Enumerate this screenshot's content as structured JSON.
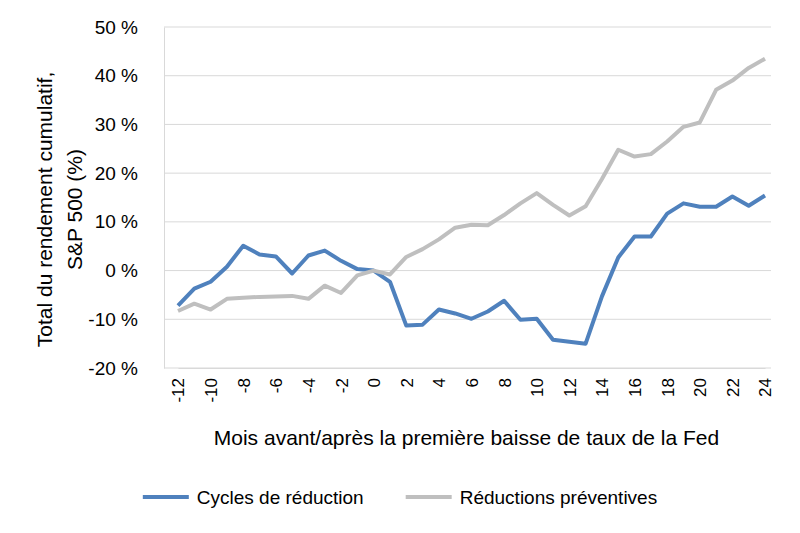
{
  "chart_data": {
    "type": "line",
    "x_label": "Mois avant/après la première baisse de taux de la Fed",
    "y_label": [
      "Total du rendement cumulatif,",
      "S&P 500 (%)"
    ],
    "x": [
      -12,
      -11,
      -10,
      -9,
      -8,
      -7,
      -6,
      -5,
      -4,
      -3,
      -2,
      -1,
      0,
      1,
      2,
      3,
      4,
      5,
      6,
      7,
      8,
      9,
      10,
      11,
      12,
      13,
      14,
      15,
      16,
      17,
      18,
      19,
      20,
      21,
      22,
      23,
      24
    ],
    "series": [
      {
        "name": "Cycles de réduction",
        "color": "#4f81bd",
        "values": [
          -7.2,
          -3.7,
          -2.3,
          0.8,
          5.1,
          3.3,
          2.9,
          -0.6,
          3.1,
          4.1,
          2.0,
          0.3,
          0,
          -2.3,
          -11.3,
          -11.1,
          -8.0,
          -8.8,
          -9.9,
          -8.4,
          -6.2,
          -10.1,
          -9.9,
          -14.2,
          -14.6,
          -15.0,
          -5.3,
          2.7,
          7.0,
          7.0,
          11.7,
          13.8,
          13.1,
          13.1,
          15.2,
          13.3,
          15.4
        ]
      },
      {
        "name": "Réductions préventives",
        "color": "#bfbfbf",
        "values": [
          -8.3,
          -6.8,
          -8.0,
          -5.8,
          -5.6,
          -5.4,
          -5.3,
          -5.2,
          -5.8,
          -3.1,
          -4.6,
          -1.0,
          0,
          -0.8,
          2.8,
          4.4,
          6.4,
          8.8,
          9.4,
          9.3,
          11.4,
          13.8,
          15.9,
          13.5,
          11.3,
          13.2,
          18.8,
          24.8,
          23.4,
          23.9,
          26.5,
          29.5,
          30.4,
          37.1,
          39.0,
          41.6,
          43.5
        ]
      }
    ],
    "xlim": [
      -12,
      24
    ],
    "xticks": [
      -12,
      -10,
      -8,
      -6,
      -4,
      -2,
      0,
      2,
      4,
      6,
      8,
      10,
      12,
      14,
      16,
      18,
      20,
      22,
      24
    ],
    "ylim": [
      -20,
      50
    ],
    "yticks": [
      {
        "value": -20,
        "label": "-20 %"
      },
      {
        "value": -10,
        "label": "-10 %"
      },
      {
        "value": 0,
        "label": "0 %"
      },
      {
        "value": 10,
        "label": "10 %"
      },
      {
        "value": 20,
        "label": "20 %"
      },
      {
        "value": 30,
        "label": "30 %"
      },
      {
        "value": 40,
        "label": "40 %"
      },
      {
        "value": 50,
        "label": "50 %"
      }
    ],
    "grid": true,
    "legend": "bottom"
  }
}
